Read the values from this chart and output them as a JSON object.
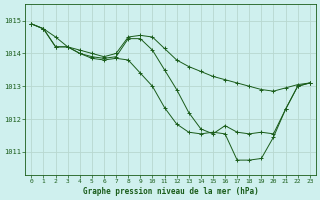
{
  "title": "Graphe pression niveau de la mer (hPa)",
  "background_color": "#cff0ee",
  "plot_bg_color": "#cff0ee",
  "grid_color": "#b8d8d0",
  "line_color": "#1a5c1a",
  "xlim": [
    -0.5,
    23.5
  ],
  "ylim": [
    1010.3,
    1015.5
  ],
  "yticks": [
    1011,
    1012,
    1013,
    1014,
    1015
  ],
  "xticks": [
    0,
    1,
    2,
    3,
    4,
    5,
    6,
    7,
    8,
    9,
    10,
    11,
    12,
    13,
    14,
    15,
    16,
    17,
    18,
    19,
    20,
    21,
    22,
    23
  ],
  "series": [
    {
      "x": [
        0,
        1,
        2,
        3,
        4,
        5,
        6,
        7,
        8,
        9,
        10,
        11,
        12,
        13,
        14,
        15,
        16,
        17,
        18,
        19,
        20,
        21,
        22,
        23
      ],
      "y": [
        1014.9,
        1014.75,
        1014.5,
        1014.2,
        1014.1,
        1014.0,
        1013.9,
        1014.0,
        1014.5,
        1014.55,
        1014.5,
        1014.15,
        1013.8,
        1013.6,
        1013.45,
        1013.3,
        1013.2,
        1013.1,
        1013.0,
        1012.9,
        1012.85,
        1012.95,
        1013.05,
        1013.1
      ]
    },
    {
      "x": [
        0,
        1,
        2,
        3,
        4,
        5,
        6,
        7,
        8,
        9,
        10,
        11,
        12,
        13,
        14,
        15,
        16,
        17,
        18,
        19,
        20,
        21,
        22,
        23
      ],
      "y": [
        1014.9,
        1014.75,
        1014.2,
        1014.2,
        1014.0,
        1013.9,
        1013.85,
        1013.9,
        1014.45,
        1014.45,
        1014.1,
        1013.5,
        1012.9,
        1012.2,
        1011.7,
        1011.55,
        1011.8,
        1011.6,
        1011.55,
        1011.6,
        1011.55,
        1012.3,
        1013.0,
        1013.1
      ]
    },
    {
      "x": [
        0,
        1,
        2,
        3,
        4,
        5,
        6,
        7,
        8,
        9,
        10,
        11,
        12,
        13,
        14,
        15,
        16,
        17,
        18,
        19,
        20,
        21,
        22,
        23
      ],
      "y": [
        1014.9,
        1014.75,
        1014.2,
        1014.2,
        1014.0,
        1013.85,
        1013.8,
        1013.85,
        1013.8,
        1013.4,
        1013.0,
        1012.35,
        1011.85,
        1011.6,
        1011.55,
        1011.6,
        1011.55,
        1010.75,
        1010.75,
        1010.8,
        1011.45,
        1012.3,
        1013.0,
        1013.1
      ]
    }
  ]
}
